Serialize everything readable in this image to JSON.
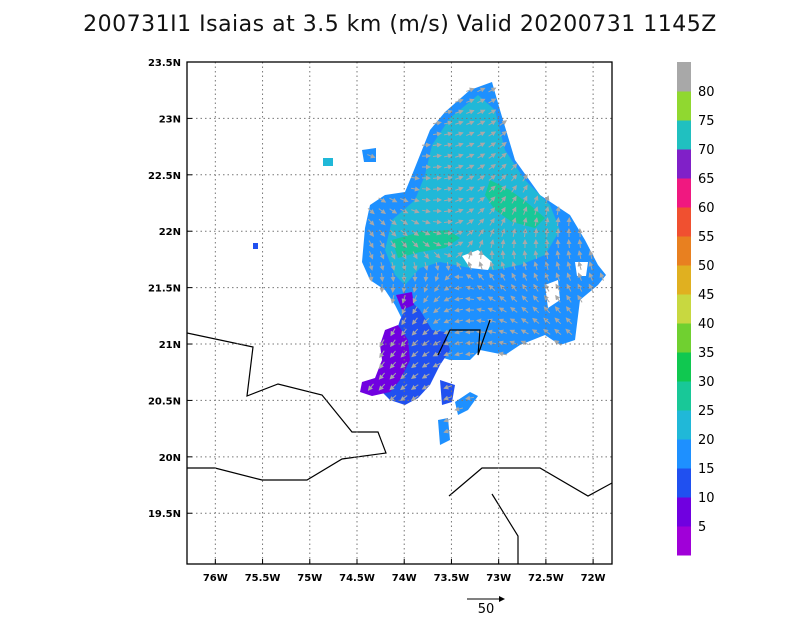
{
  "title": "200731I1 Isaias at 3.5 km (m/s) Valid 20200731 1145Z",
  "map": {
    "lon_range": [
      -76.3,
      -71.8
    ],
    "lat_range": [
      19.05,
      23.5
    ],
    "lon_ticks": [
      {
        "value": -76,
        "label": "76W"
      },
      {
        "value": -75.5,
        "label": "75.5W"
      },
      {
        "value": -75,
        "label": "75W"
      },
      {
        "value": -74.5,
        "label": "74.5W"
      },
      {
        "value": -74,
        "label": "74W"
      },
      {
        "value": -73.5,
        "label": "73.5W"
      },
      {
        "value": -73,
        "label": "73W"
      },
      {
        "value": -72.5,
        "label": "72.5W"
      },
      {
        "value": -72,
        "label": "72W"
      }
    ],
    "lat_ticks": [
      {
        "value": 23.5,
        "label": "23.5N"
      },
      {
        "value": 23,
        "label": "23N"
      },
      {
        "value": 22.5,
        "label": "22.5N"
      },
      {
        "value": 22,
        "label": "22N"
      },
      {
        "value": 21.5,
        "label": "21.5N"
      },
      {
        "value": 21,
        "label": "21N"
      },
      {
        "value": 20.5,
        "label": "20.5N"
      },
      {
        "value": 20,
        "label": "20N"
      },
      {
        "value": 19.5,
        "label": "19.5N"
      }
    ],
    "grid": "dotted"
  },
  "colorbar": {
    "colors": [
      "#a000d8",
      "#7000e0",
      "#2050f0",
      "#1e90ff",
      "#20b8d8",
      "#18c898",
      "#10c850",
      "#70d030",
      "#c8d840",
      "#e0b020",
      "#e88020",
      "#f05030",
      "#f01880",
      "#8020c8",
      "#20c0c0",
      "#90d830",
      "#a8a8a8"
    ],
    "labels": [
      "5",
      "10",
      "15",
      "20",
      "25",
      "30",
      "35",
      "40",
      "45",
      "50",
      "55",
      "60",
      "65",
      "70",
      "75",
      "80"
    ]
  },
  "vector_reference": {
    "label": "50"
  }
}
